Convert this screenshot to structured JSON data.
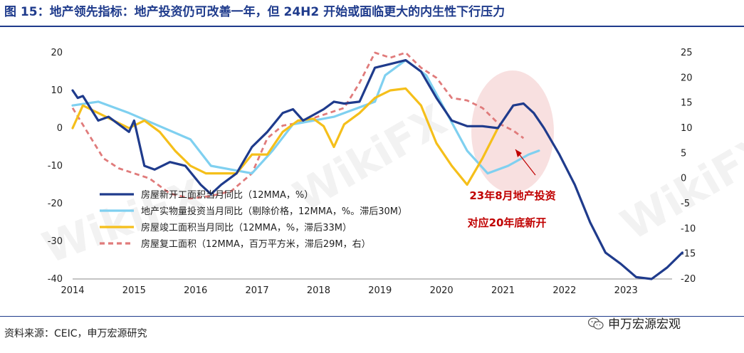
{
  "title": "图 15：地产领先指标：地产投资仍可改善一年，但 24H2 开始或面临更大的内生性下行压力",
  "source": "资料来源：CEIC，申万宏源研究",
  "brand": "申万宏源宏观",
  "watermark": "WikiFX",
  "colors": {
    "title": "#1f3b8c",
    "new_starts": "#1f3b8c",
    "real_investment": "#7fd0f0",
    "completions": "#f5bf1a",
    "resumption": "#e07b7b",
    "annotation": "#c00000",
    "highlight": "#f6d5d5"
  },
  "chart_data": {
    "type": "line",
    "x_ticks": [
      "2014",
      "2015",
      "2016",
      "2017",
      "2018",
      "2019",
      "2020",
      "2021",
      "2022",
      "2023"
    ],
    "y_left": {
      "ticks": [
        20,
        10,
        0,
        -10,
        -20,
        -30,
        -40
      ],
      "ylim": [
        -40,
        20
      ]
    },
    "y_right": {
      "ticks": [
        25,
        20,
        15,
        10,
        5,
        0,
        -5,
        -10,
        -15,
        -20
      ],
      "ylim": [
        -20,
        25
      ]
    },
    "series": [
      {
        "name": "房屋新开工面积当月同比（12MMA，%）",
        "axis": "left",
        "style": "solid",
        "color_key": "new_starts",
        "points": [
          [
            "2014-01",
            10
          ],
          [
            "2014-02",
            8
          ],
          [
            "2014-03",
            8.5
          ],
          [
            "2014-06",
            2
          ],
          [
            "2014-08",
            3
          ],
          [
            "2014-10",
            1
          ],
          [
            "2014-12",
            -1
          ],
          [
            "2015-01",
            2
          ],
          [
            "2015-03",
            -10
          ],
          [
            "2015-05",
            -11
          ],
          [
            "2015-08",
            -9
          ],
          [
            "2015-11",
            -10
          ],
          [
            "2016-02",
            -15
          ],
          [
            "2016-04",
            -17.5
          ],
          [
            "2016-06",
            -15
          ],
          [
            "2016-09",
            -12
          ],
          [
            "2016-12",
            -5
          ],
          [
            "2017-03",
            -1
          ],
          [
            "2017-06",
            4
          ],
          [
            "2017-08",
            5
          ],
          [
            "2017-10",
            2
          ],
          [
            "2017-12",
            3.5
          ],
          [
            "2018-02",
            5
          ],
          [
            "2018-04",
            7
          ],
          [
            "2018-06",
            6.5
          ],
          [
            "2018-09",
            7
          ],
          [
            "2018-12",
            16
          ],
          [
            "2019-03",
            17
          ],
          [
            "2019-06",
            18
          ],
          [
            "2019-09",
            15
          ],
          [
            "2019-12",
            8
          ],
          [
            "2020-03",
            2
          ],
          [
            "2020-06",
            0.5
          ],
          [
            "2020-09",
            0.5
          ],
          [
            "2020-12",
            0
          ],
          [
            "2021-03",
            6
          ],
          [
            "2021-05",
            6.5
          ],
          [
            "2021-07",
            4
          ],
          [
            "2021-09",
            0
          ],
          [
            "2021-12",
            -7
          ],
          [
            "2022-03",
            -15
          ],
          [
            "2022-06",
            -25
          ],
          [
            "2022-09",
            -33
          ],
          [
            "2022-12",
            -36
          ],
          [
            "2023-03",
            -39.5
          ],
          [
            "2023-06",
            -40
          ],
          [
            "2023-09",
            -37
          ],
          [
            "2023-12",
            -33
          ]
        ]
      },
      {
        "name": "地产实物量投资当月同比（剔除价格，12MMA，%。滞后30M）",
        "axis": "left",
        "style": "solid",
        "color_key": "real_investment",
        "points": [
          [
            "2014-01",
            6
          ],
          [
            "2014-06",
            7
          ],
          [
            "2014-12",
            4
          ],
          [
            "2015-06",
            0.5
          ],
          [
            "2015-12",
            -3
          ],
          [
            "2016-04",
            -10
          ],
          [
            "2016-08",
            -11
          ],
          [
            "2016-12",
            -12
          ],
          [
            "2017-04",
            -6
          ],
          [
            "2017-08",
            1
          ],
          [
            "2017-12",
            2
          ],
          [
            "2018-04",
            3
          ],
          [
            "2018-08",
            5
          ],
          [
            "2018-12",
            7
          ],
          [
            "2019-02",
            14
          ],
          [
            "2019-06",
            18
          ],
          [
            "2019-10",
            14
          ],
          [
            "2020-02",
            4
          ],
          [
            "2020-06",
            -6
          ],
          [
            "2020-10",
            -12
          ],
          [
            "2021-02",
            -10
          ],
          [
            "2021-06",
            -7
          ],
          [
            "2021-08",
            -6
          ]
        ]
      },
      {
        "name": "房屋竣工面积当月同比（12MMA，%，滞后33M）",
        "axis": "left",
        "style": "solid",
        "color_key": "completions",
        "points": [
          [
            "2014-01",
            0
          ],
          [
            "2014-03",
            6
          ],
          [
            "2014-06",
            4
          ],
          [
            "2014-09",
            2
          ],
          [
            "2014-12",
            0
          ],
          [
            "2015-03",
            2
          ],
          [
            "2015-06",
            -1
          ],
          [
            "2015-09",
            -6
          ],
          [
            "2015-12",
            -10
          ],
          [
            "2016-03",
            -12
          ],
          [
            "2016-06",
            -12
          ],
          [
            "2016-09",
            -12
          ],
          [
            "2016-12",
            -7
          ],
          [
            "2017-03",
            -7
          ],
          [
            "2017-06",
            -1
          ],
          [
            "2017-09",
            2
          ],
          [
            "2017-12",
            2.5
          ],
          [
            "2018-02",
            0.5
          ],
          [
            "2018-04",
            -5
          ],
          [
            "2018-06",
            1
          ],
          [
            "2018-09",
            4
          ],
          [
            "2018-12",
            8
          ],
          [
            "2019-03",
            10
          ],
          [
            "2019-06",
            10.5
          ],
          [
            "2019-09",
            6
          ],
          [
            "2019-12",
            -4
          ],
          [
            "2020-03",
            -10
          ],
          [
            "2020-06",
            -15
          ],
          [
            "2020-09",
            -8
          ],
          [
            "2020-12",
            0
          ]
        ]
      },
      {
        "name": "房屋复工面积（12MMA，百万平方米，滞后29M，右）",
        "axis": "right",
        "style": "dashed",
        "color_key": "resumption",
        "points": [
          [
            "2014-01",
            14
          ],
          [
            "2014-04",
            9
          ],
          [
            "2014-07",
            4
          ],
          [
            "2014-10",
            2
          ],
          [
            "2015-01",
            1
          ],
          [
            "2015-04",
            0
          ],
          [
            "2015-08",
            -3
          ],
          [
            "2015-12",
            -4
          ],
          [
            "2016-04",
            -3.5
          ],
          [
            "2016-08",
            -2.5
          ],
          [
            "2016-12",
            1
          ],
          [
            "2017-03",
            8
          ],
          [
            "2017-06",
            10.5
          ],
          [
            "2017-09",
            11
          ],
          [
            "2017-12",
            12
          ],
          [
            "2018-03",
            13
          ],
          [
            "2018-06",
            14
          ],
          [
            "2018-09",
            19
          ],
          [
            "2018-12",
            25
          ],
          [
            "2019-03",
            24
          ],
          [
            "2019-06",
            25
          ],
          [
            "2019-09",
            22
          ],
          [
            "2019-12",
            20
          ],
          [
            "2020-03",
            16
          ],
          [
            "2020-06",
            15.5
          ],
          [
            "2020-09",
            14
          ],
          [
            "2020-12",
            11
          ],
          [
            "2021-03",
            9.5
          ],
          [
            "2021-05",
            8
          ]
        ]
      }
    ],
    "annotation": {
      "line1": "23年8月地产投资",
      "line2": "对应20年底新开"
    },
    "legend_position": "bottom-left"
  }
}
